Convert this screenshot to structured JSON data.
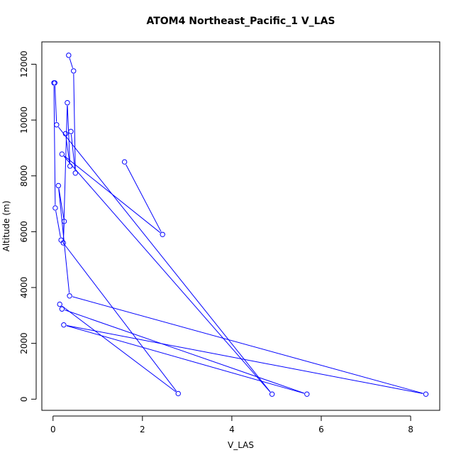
{
  "chart_data": {
    "type": "line",
    "title": "ATOM4 Northeast_Pacific_1 V_LAS",
    "xlabel": "V_LAS",
    "ylabel": "Altitude (m)",
    "xlim": [
      -0.25,
      8.65
    ],
    "ylim": [
      -400,
      12800
    ],
    "xticks": [
      0,
      2,
      4,
      6,
      8
    ],
    "yticks": [
      0,
      2000,
      4000,
      6000,
      8000,
      10000,
      12000
    ],
    "grid": false,
    "legend": "none",
    "colors": {
      "series": "#0000ff",
      "axis": "#000000"
    },
    "series": [
      {
        "markers": "open-circle",
        "points": [
          [
            1.6,
            8500
          ],
          [
            2.45,
            5900
          ],
          [
            0.2,
            8780
          ],
          [
            4.9,
            180
          ],
          [
            0.08,
            9830
          ],
          [
            0.04,
            11330
          ],
          [
            0.02,
            11330
          ],
          [
            0.05,
            6850
          ],
          [
            0.18,
            5700
          ],
          [
            2.8,
            200
          ],
          [
            0.15,
            3400
          ],
          [
            0.2,
            3230
          ],
          [
            5.68,
            180
          ],
          [
            0.24,
            2660
          ],
          [
            8.34,
            180
          ],
          [
            0.37,
            3700
          ],
          [
            0.12,
            7650
          ],
          [
            0.25,
            6370
          ],
          [
            0.23,
            5600
          ],
          [
            0.32,
            10620
          ],
          [
            0.38,
            8350
          ],
          [
            0.28,
            9510
          ],
          [
            0.4,
            9590
          ],
          [
            0.5,
            8100
          ],
          [
            0.46,
            11760
          ],
          [
            0.35,
            12320
          ]
        ]
      }
    ]
  }
}
